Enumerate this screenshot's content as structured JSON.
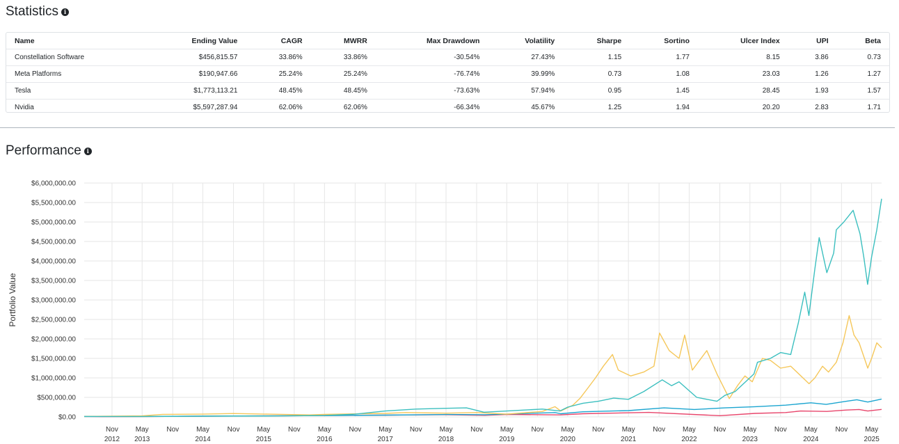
{
  "statistics": {
    "title": "Statistics",
    "columns": [
      "Name",
      "Ending Value",
      "CAGR",
      "MWRR",
      "Max Drawdown",
      "Volatility",
      "Sharpe",
      "Sortino",
      "Ulcer Index",
      "UPI",
      "Beta"
    ],
    "rows": [
      [
        "Constellation Software",
        "$456,815.57",
        "33.86%",
        "33.86%",
        "-30.54%",
        "27.43%",
        "1.15",
        "1.77",
        "8.15",
        "3.86",
        "0.73"
      ],
      [
        "Meta Platforms",
        "$190,947.66",
        "25.24%",
        "25.24%",
        "-76.74%",
        "39.99%",
        "0.73",
        "1.08",
        "23.03",
        "1.26",
        "1.27"
      ],
      [
        "Tesla",
        "$1,773,113.21",
        "48.45%",
        "48.45%",
        "-73.63%",
        "57.94%",
        "0.95",
        "1.45",
        "28.45",
        "1.93",
        "1.57"
      ],
      [
        "Nvidia",
        "$5,597,287.94",
        "62.06%",
        "62.06%",
        "-66.34%",
        "45.67%",
        "1.25",
        "1.94",
        "20.20",
        "2.83",
        "1.71"
      ]
    ]
  },
  "performance": {
    "title": "Performance"
  },
  "chart_data": {
    "type": "line",
    "ylabel": "Portfolio Value",
    "ylim": [
      0,
      6000000
    ],
    "y_ticks": [
      0,
      500000,
      1000000,
      1500000,
      2000000,
      2500000,
      3000000,
      3500000,
      4000000,
      4500000,
      5000000,
      5500000,
      6000000
    ],
    "y_tick_labels": [
      "$0.00",
      "$500,000.00",
      "$1,000,000.00",
      "$1,500,000.00",
      "$2,000,000.00",
      "$2,500,000.00",
      "$3,000,000.00",
      "$3,500,000.00",
      "$4,000,000.00",
      "$4,500,000.00",
      "$5,000,000.00",
      "$5,500,000.00",
      "$6,000,000.00"
    ],
    "xlim": [
      "2012-05-18",
      "2025-06-30"
    ],
    "x_ticks": [
      {
        "date": "2012-11-01",
        "line1": "Nov",
        "line2": "2012"
      },
      {
        "date": "2013-05-01",
        "line1": "May",
        "line2": "2013"
      },
      {
        "date": "2013-11-01",
        "line1": "Nov",
        "line2": ""
      },
      {
        "date": "2014-05-01",
        "line1": "May",
        "line2": "2014"
      },
      {
        "date": "2014-11-01",
        "line1": "Nov",
        "line2": ""
      },
      {
        "date": "2015-05-01",
        "line1": "May",
        "line2": "2015"
      },
      {
        "date": "2015-11-01",
        "line1": "Nov",
        "line2": ""
      },
      {
        "date": "2016-05-01",
        "line1": "May",
        "line2": "2016"
      },
      {
        "date": "2016-11-01",
        "line1": "Nov",
        "line2": ""
      },
      {
        "date": "2017-05-01",
        "line1": "May",
        "line2": "2017"
      },
      {
        "date": "2017-11-01",
        "line1": "Nov",
        "line2": ""
      },
      {
        "date": "2018-05-01",
        "line1": "May",
        "line2": "2018"
      },
      {
        "date": "2018-11-01",
        "line1": "Nov",
        "line2": ""
      },
      {
        "date": "2019-05-01",
        "line1": "May",
        "line2": "2019"
      },
      {
        "date": "2019-11-01",
        "line1": "Nov",
        "line2": ""
      },
      {
        "date": "2020-05-01",
        "line1": "May",
        "line2": "2020"
      },
      {
        "date": "2020-11-01",
        "line1": "Nov",
        "line2": ""
      },
      {
        "date": "2021-05-01",
        "line1": "May",
        "line2": "2021"
      },
      {
        "date": "2021-11-01",
        "line1": "Nov",
        "line2": ""
      },
      {
        "date": "2022-05-01",
        "line1": "May",
        "line2": "2022"
      },
      {
        "date": "2022-11-01",
        "line1": "Nov",
        "line2": ""
      },
      {
        "date": "2023-05-01",
        "line1": "May",
        "line2": "2023"
      },
      {
        "date": "2023-11-01",
        "line1": "Nov",
        "line2": ""
      },
      {
        "date": "2024-05-01",
        "line1": "May",
        "line2": "2024"
      },
      {
        "date": "2024-11-01",
        "line1": "Nov",
        "line2": ""
      },
      {
        "date": "2025-05-01",
        "line1": "May",
        "line2": "2025"
      }
    ],
    "grid": true,
    "legend": "none",
    "series": [
      {
        "color": "#3bbfbf",
        "points": [
          [
            "2012-05-18",
            10000
          ],
          [
            "2013-05-01",
            9000
          ],
          [
            "2014-05-01",
            20000
          ],
          [
            "2015-05-01",
            22000
          ],
          [
            "2016-05-01",
            35000
          ],
          [
            "2016-11-01",
            70000
          ],
          [
            "2017-05-01",
            150000
          ],
          [
            "2017-11-01",
            200000
          ],
          [
            "2018-05-01",
            220000
          ],
          [
            "2018-09-01",
            230000
          ],
          [
            "2018-12-15",
            120000
          ],
          [
            "2019-05-01",
            150000
          ],
          [
            "2019-12-01",
            200000
          ],
          [
            "2020-03-15",
            150000
          ],
          [
            "2020-05-01",
            250000
          ],
          [
            "2020-08-01",
            350000
          ],
          [
            "2020-11-01",
            400000
          ],
          [
            "2021-02-01",
            480000
          ],
          [
            "2021-05-01",
            450000
          ],
          [
            "2021-08-01",
            650000
          ],
          [
            "2021-11-20",
            950000
          ],
          [
            "2022-01-15",
            800000
          ],
          [
            "2022-03-01",
            900000
          ],
          [
            "2022-06-15",
            500000
          ],
          [
            "2022-10-15",
            400000
          ],
          [
            "2022-12-01",
            550000
          ],
          [
            "2023-02-01",
            650000
          ],
          [
            "2023-05-25",
            1100000
          ],
          [
            "2023-06-15",
            1400000
          ],
          [
            "2023-09-01",
            1500000
          ],
          [
            "2023-11-01",
            1650000
          ],
          [
            "2024-01-01",
            1600000
          ],
          [
            "2024-02-15",
            2400000
          ],
          [
            "2024-03-25",
            3200000
          ],
          [
            "2024-04-19",
            2600000
          ],
          [
            "2024-05-25",
            3800000
          ],
          [
            "2024-06-20",
            4600000
          ],
          [
            "2024-08-05",
            3700000
          ],
          [
            "2024-09-15",
            4200000
          ],
          [
            "2024-10-01",
            4800000
          ],
          [
            "2024-11-15",
            5000000
          ],
          [
            "2025-01-10",
            5300000
          ],
          [
            "2025-02-20",
            4700000
          ],
          [
            "2025-03-15",
            4100000
          ],
          [
            "2025-04-07",
            3400000
          ],
          [
            "2025-05-01",
            4100000
          ],
          [
            "2025-06-01",
            4800000
          ],
          [
            "2025-06-30",
            5597287.94
          ]
        ]
      },
      {
        "color": "#f5c75a",
        "points": [
          [
            "2012-05-18",
            10000
          ],
          [
            "2013-05-01",
            25000
          ],
          [
            "2013-09-01",
            65000
          ],
          [
            "2014-05-01",
            70000
          ],
          [
            "2014-11-01",
            85000
          ],
          [
            "2015-06-01",
            70000
          ],
          [
            "2016-02-01",
            50000
          ],
          [
            "2016-05-01",
            65000
          ],
          [
            "2017-05-01",
            90000
          ],
          [
            "2017-09-01",
            110000
          ],
          [
            "2018-05-01",
            95000
          ],
          [
            "2018-11-01",
            110000
          ],
          [
            "2019-05-01",
            70000
          ],
          [
            "2019-12-01",
            140000
          ],
          [
            "2020-02-15",
            260000
          ],
          [
            "2020-03-20",
            150000
          ],
          [
            "2020-06-01",
            300000
          ],
          [
            "2020-07-15",
            480000
          ],
          [
            "2020-09-01",
            750000
          ],
          [
            "2020-10-15",
            1000000
          ],
          [
            "2020-12-01",
            1300000
          ],
          [
            "2021-01-25",
            1600000
          ],
          [
            "2021-03-01",
            1200000
          ],
          [
            "2021-05-15",
            1050000
          ],
          [
            "2021-08-01",
            1150000
          ],
          [
            "2021-10-01",
            1300000
          ],
          [
            "2021-11-04",
            2150000
          ],
          [
            "2022-01-01",
            1700000
          ],
          [
            "2022-03-01",
            1500000
          ],
          [
            "2022-04-04",
            2100000
          ],
          [
            "2022-05-20",
            1200000
          ],
          [
            "2022-08-15",
            1700000
          ],
          [
            "2022-10-15",
            1100000
          ],
          [
            "2022-12-28",
            470000
          ],
          [
            "2023-02-15",
            800000
          ],
          [
            "2023-04-01",
            1050000
          ],
          [
            "2023-05-15",
            900000
          ],
          [
            "2023-07-15",
            1500000
          ],
          [
            "2023-09-01",
            1450000
          ],
          [
            "2023-11-01",
            1250000
          ],
          [
            "2024-01-01",
            1300000
          ],
          [
            "2024-04-20",
            850000
          ],
          [
            "2024-05-25",
            1000000
          ],
          [
            "2024-07-10",
            1300000
          ],
          [
            "2024-08-15",
            1150000
          ],
          [
            "2024-10-01",
            1400000
          ],
          [
            "2024-11-10",
            1900000
          ],
          [
            "2024-12-17",
            2600000
          ],
          [
            "2025-01-15",
            2100000
          ],
          [
            "2025-02-15",
            1900000
          ],
          [
            "2025-04-08",
            1250000
          ],
          [
            "2025-05-01",
            1500000
          ],
          [
            "2025-06-01",
            1900000
          ],
          [
            "2025-06-30",
            1773113.21
          ]
        ]
      },
      {
        "color": "#1ba5d0",
        "points": [
          [
            "2012-05-18",
            10000
          ],
          [
            "2013-05-01",
            13000
          ],
          [
            "2014-05-01",
            18000
          ],
          [
            "2015-05-01",
            25000
          ],
          [
            "2016-05-01",
            33000
          ],
          [
            "2017-05-01",
            45000
          ],
          [
            "2018-05-01",
            60000
          ],
          [
            "2018-12-20",
            55000
          ],
          [
            "2019-05-01",
            70000
          ],
          [
            "2020-02-15",
            110000
          ],
          [
            "2020-03-20",
            80000
          ],
          [
            "2020-08-01",
            130000
          ],
          [
            "2021-05-01",
            160000
          ],
          [
            "2021-12-01",
            230000
          ],
          [
            "2022-06-01",
            190000
          ],
          [
            "2022-12-01",
            230000
          ],
          [
            "2023-06-01",
            260000
          ],
          [
            "2023-12-01",
            300000
          ],
          [
            "2024-05-01",
            360000
          ],
          [
            "2024-08-01",
            320000
          ],
          [
            "2024-12-01",
            400000
          ],
          [
            "2025-02-01",
            440000
          ],
          [
            "2025-04-08",
            380000
          ],
          [
            "2025-06-30",
            456815.57
          ]
        ]
      },
      {
        "color": "#e8456b",
        "points": [
          [
            "2012-05-18",
            10000
          ],
          [
            "2012-09-01",
            6000
          ],
          [
            "2013-05-01",
            9000
          ],
          [
            "2014-05-01",
            20000
          ],
          [
            "2015-05-01",
            25000
          ],
          [
            "2016-05-01",
            35000
          ],
          [
            "2017-05-01",
            45000
          ],
          [
            "2018-05-01",
            55000
          ],
          [
            "2018-12-20",
            40000
          ],
          [
            "2019-05-01",
            60000
          ],
          [
            "2020-03-20",
            50000
          ],
          [
            "2020-08-01",
            80000
          ],
          [
            "2021-09-01",
            115000
          ],
          [
            "2022-11-01",
            30000
          ],
          [
            "2023-06-01",
            90000
          ],
          [
            "2023-12-01",
            110000
          ],
          [
            "2024-03-01",
            150000
          ],
          [
            "2024-08-05",
            140000
          ],
          [
            "2024-12-01",
            175000
          ],
          [
            "2025-02-15",
            190000
          ],
          [
            "2025-04-08",
            150000
          ],
          [
            "2025-06-30",
            190947.66
          ]
        ]
      }
    ]
  }
}
